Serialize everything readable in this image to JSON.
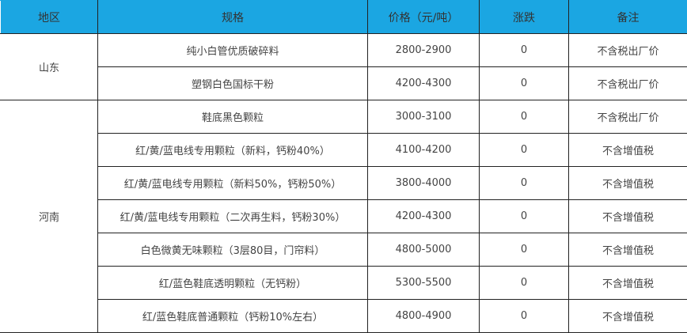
{
  "header": {
    "region": "地区",
    "spec": "规格",
    "price": "价格（元/吨）",
    "change": "涨跌",
    "note": "备注"
  },
  "header_color": "#1ba6e2",
  "groups": [
    {
      "region": "山东",
      "rows": [
        {
          "spec": "纯小白管优质破碎料",
          "price": "2800-2900",
          "change": "0",
          "note": "不含税出厂价"
        },
        {
          "spec": "塑钢白色国标干粉",
          "price": "4200-4300",
          "change": "0",
          "note": "不含税出厂价"
        }
      ]
    },
    {
      "region": "河南",
      "rows": [
        {
          "spec": "鞋底黑色颗粒",
          "price": "3000-3100",
          "change": "0",
          "note": "不含税出厂价"
        },
        {
          "spec": "红/黄/蓝电线专用颗粒（新料，钙粉40%）",
          "price": "4100-4200",
          "change": "0",
          "note": "不含增值税"
        },
        {
          "spec": "红/黄/蓝电线专用颗粒（新料50%，钙粉50%）",
          "price": "3800-4000",
          "change": "0",
          "note": "不含增值税"
        },
        {
          "spec": "红/黄/蓝电线专用颗粒（二次再生料，钙粉30%）",
          "price": "4200-4300",
          "change": "0",
          "note": "不含增值税"
        },
        {
          "spec": "白色微黄无味颗粒（3层80目，门帘料）",
          "price": "4800-5000",
          "change": "0",
          "note": "不含增值税"
        },
        {
          "spec": "红/蓝色鞋底透明颗粒（无钙粉）",
          "price": "5300-5500",
          "change": "0",
          "note": "不含增值税"
        },
        {
          "spec": "红/蓝色鞋底普通颗粒（钙粉10%左右）",
          "price": "4800-4900",
          "change": "0",
          "note": "不含增值税"
        }
      ]
    }
  ]
}
